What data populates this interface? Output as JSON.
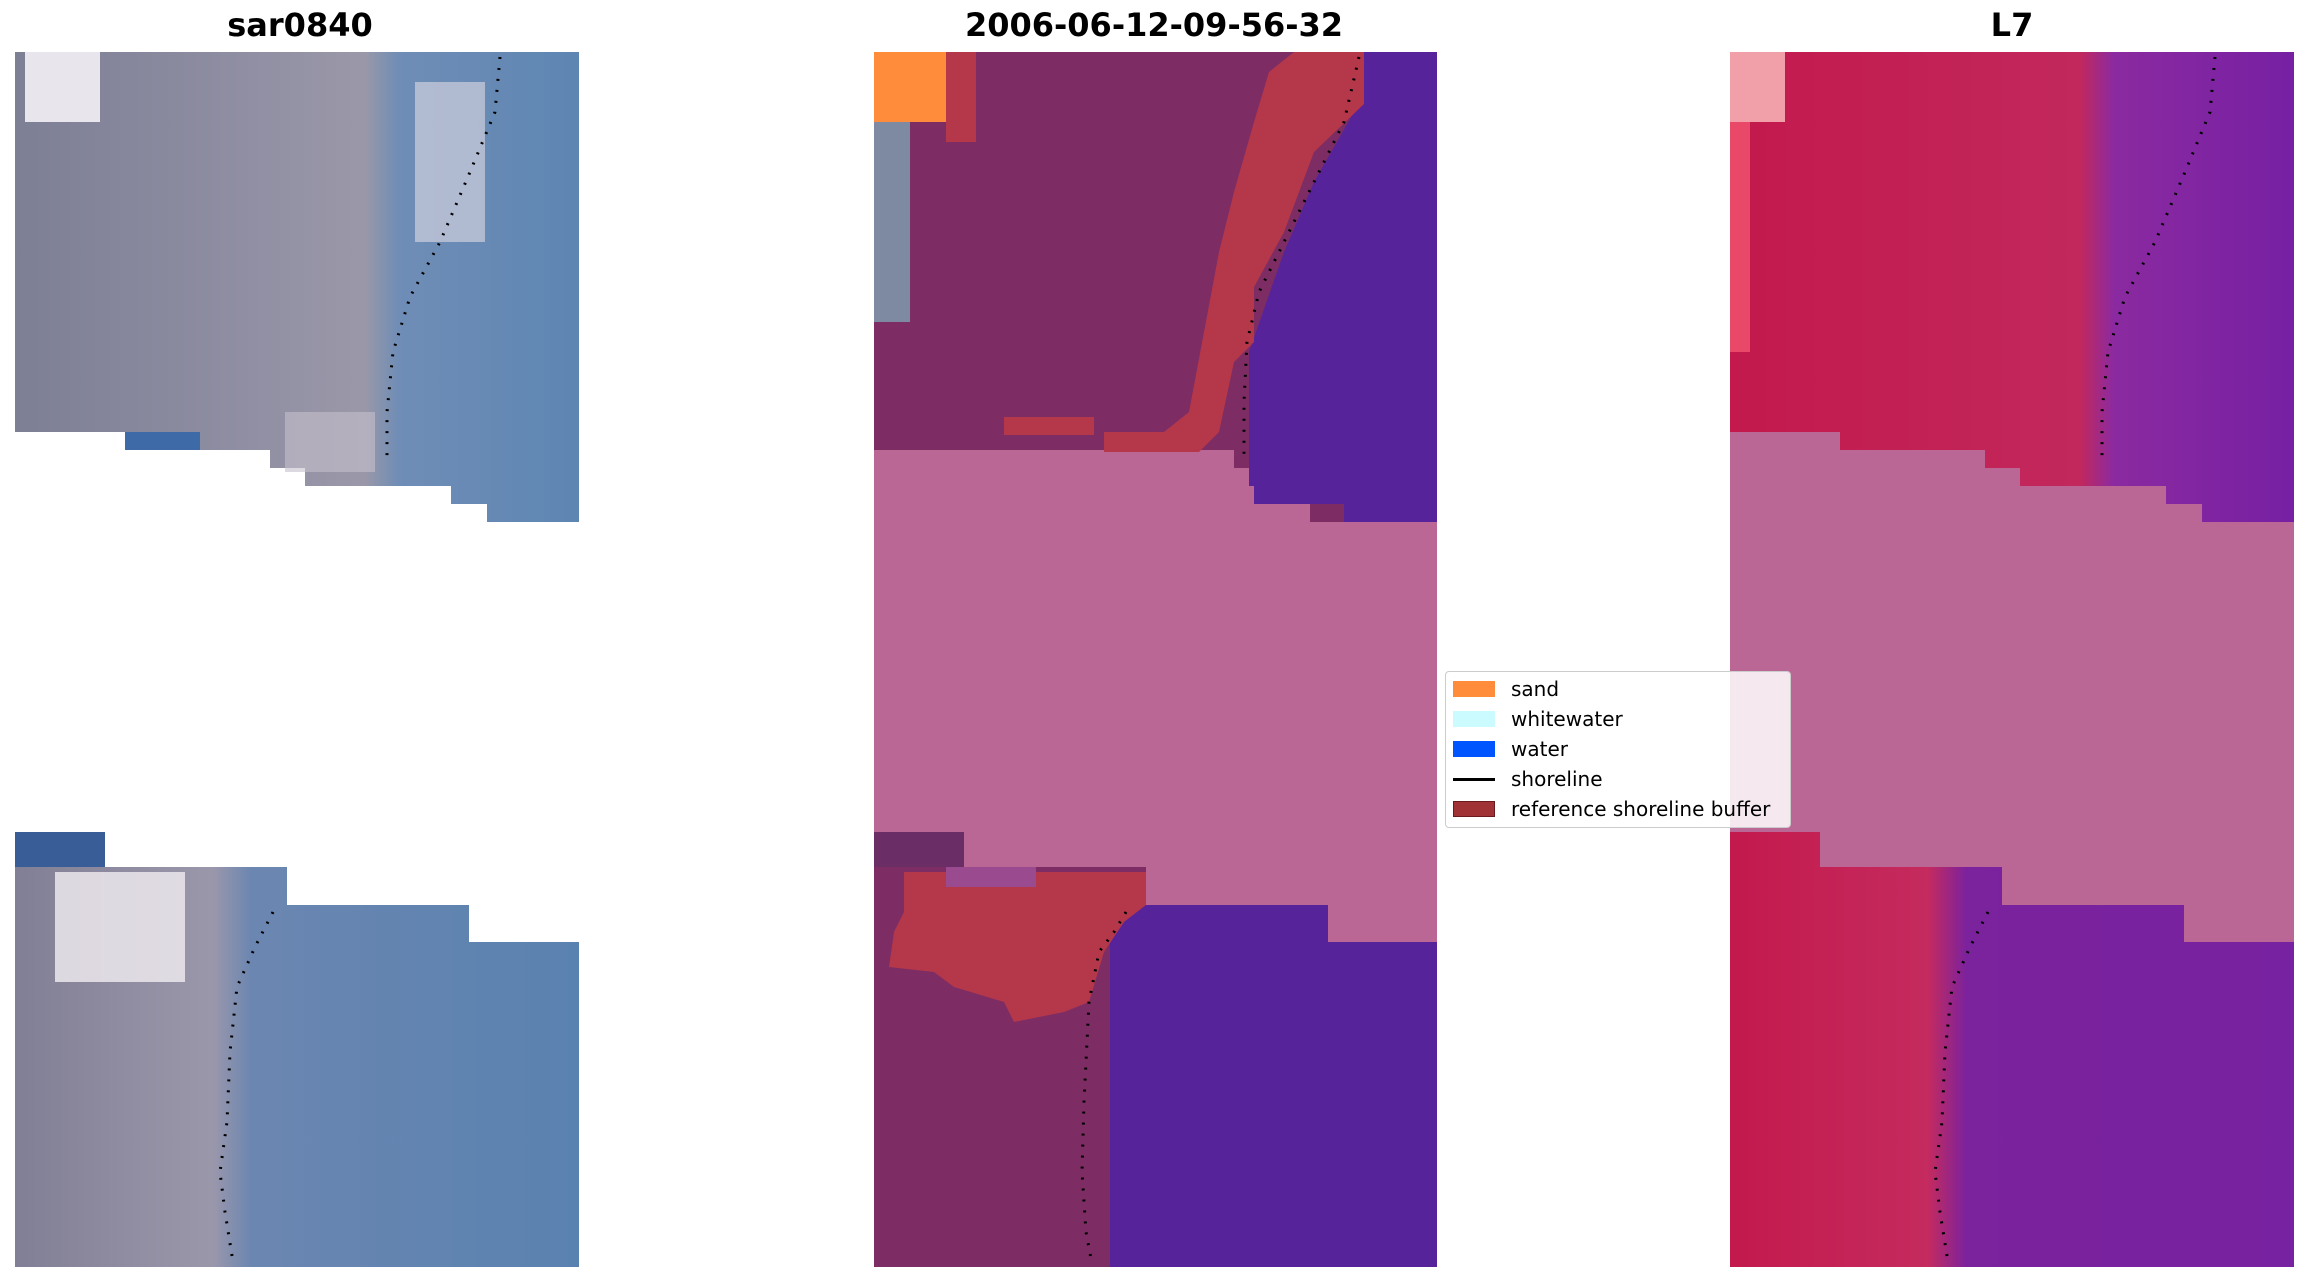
{
  "titles": {
    "left": "sar0840",
    "middle": "2006-06-12-09-56-32",
    "right": "L7"
  },
  "legend": {
    "items": [
      {
        "label": "sand",
        "color": "#ff8c3a",
        "kind": "patch"
      },
      {
        "label": "whitewater",
        "color": "#ccfbff",
        "kind": "patch"
      },
      {
        "label": "water",
        "color": "#0055ff",
        "kind": "patch"
      },
      {
        "label": "shoreline",
        "color": "#000000",
        "kind": "line"
      },
      {
        "label": "reference shoreline buffer",
        "color": "#a03236",
        "kind": "patch"
      }
    ]
  },
  "colors": {
    "nodata_fill": "#bb6795",
    "rgb_water": "#5f86b4",
    "rgb_land": "#8b8ea3",
    "class_land": "#7d2d63",
    "class_water": "#56239a",
    "class_buffer": "#b5374a",
    "ndwi_land": "#c0184e",
    "ndwi_water": "#7a1fa1"
  }
}
